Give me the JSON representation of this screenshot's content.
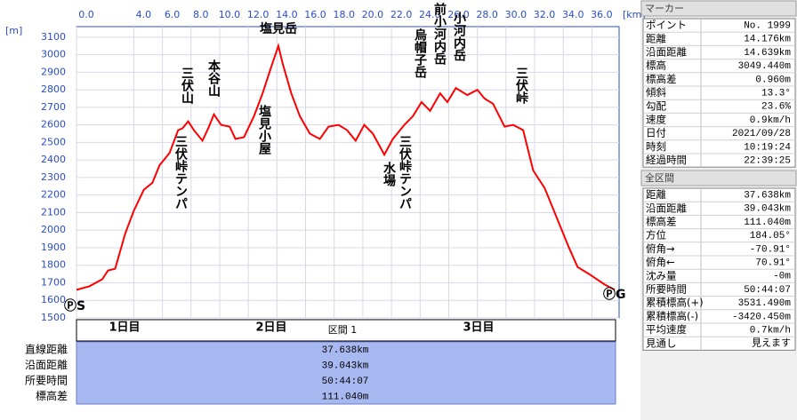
{
  "chart_data": {
    "type": "line",
    "y_axis_label": "[m]",
    "x_axis_label": "[km]",
    "x": [
      0,
      0.9,
      1.8,
      2.2,
      2.7,
      3.4,
      4.0,
      4.7,
      5.3,
      5.8,
      6.5,
      7.1,
      7.4,
      7.8,
      8.2,
      8.8,
      9.2,
      9.6,
      10.1,
      10.7,
      11.1,
      11.7,
      12.4,
      13.0,
      13.6,
      14.1,
      14.4,
      15.0,
      15.6,
      16.3,
      17.0,
      17.6,
      18.3,
      18.9,
      19.5,
      20.1,
      20.7,
      21.5,
      22.1,
      22.9,
      23.5,
      24.1,
      24.7,
      25.4,
      25.9,
      26.5,
      27.3,
      28.0,
      28.5,
      29.1,
      29.9,
      30.5,
      31.2,
      31.9,
      32.7,
      33.5,
      34.4,
      35.0,
      35.8,
      36.9,
      37.6
    ],
    "series": [
      {
        "color": "#ff0000",
        "values": [
          1660,
          1680,
          1720,
          1770,
          1780,
          1980,
          2110,
          2230,
          2270,
          2370,
          2440,
          2570,
          2580,
          2620,
          2570,
          2510,
          2580,
          2660,
          2600,
          2590,
          2520,
          2530,
          2650,
          2780,
          2930,
          3050,
          2950,
          2780,
          2650,
          2550,
          2520,
          2590,
          2600,
          2570,
          2510,
          2600,
          2550,
          2430,
          2520,
          2600,
          2650,
          2730,
          2680,
          2780,
          2730,
          2810,
          2770,
          2800,
          2750,
          2720,
          2590,
          2600,
          2570,
          2340,
          2240,
          2080,
          1900,
          1790,
          1750,
          1690,
          1660
        ]
      }
    ],
    "xlim": [
      0,
      37.9
    ],
    "ylim": [
      1500,
      3160
    ],
    "xticks": [
      {
        "value": 0,
        "label": "0.0"
      },
      {
        "value": 4,
        "label": "4.0"
      },
      {
        "value": 6,
        "label": "6.0"
      },
      {
        "value": 8,
        "label": "8.0"
      },
      {
        "value": 10,
        "label": "10.0"
      },
      {
        "value": 12,
        "label": "12.0"
      },
      {
        "value": 14,
        "label": "14.0"
      },
      {
        "value": 16,
        "label": "16.0"
      },
      {
        "value": 18,
        "label": "18.0"
      },
      {
        "value": 20,
        "label": "20.0"
      },
      {
        "value": 22,
        "label": "22.0"
      },
      {
        "value": 24,
        "label": "24.0"
      },
      {
        "value": 26,
        "label": "26.0"
      },
      {
        "value": 28,
        "label": "28.0"
      },
      {
        "value": 30,
        "label": "30.0"
      },
      {
        "value": 32,
        "label": "32.0"
      },
      {
        "value": 34,
        "label": "34.0"
      },
      {
        "value": 36,
        "label": "36.0"
      }
    ],
    "yticks": [
      1500,
      1600,
      1700,
      1800,
      1900,
      2000,
      2100,
      2200,
      2300,
      2400,
      2500,
      2600,
      2700,
      2800,
      2900,
      3000,
      3100
    ],
    "grid": true,
    "annotations": [
      "三伏山",
      "三伏峠テンパ",
      "本谷山",
      "塩見小屋",
      "塩見岳",
      "水場",
      "三伏峠テンパ",
      "烏帽子岳",
      "前小河内岳",
      "小河内岳",
      "三伏峠"
    ],
    "start_label": "ⓅS",
    "end_label": "ⓅG"
  },
  "day_bar": {
    "days": [
      "1日目",
      "2日目",
      "3日目"
    ],
    "section": "区間 1"
  },
  "summary": {
    "rows": [
      [
        "直線距離",
        "37.638km"
      ],
      [
        "沿面距離",
        "39.043km"
      ],
      [
        "所要時間",
        "50:44:07"
      ],
      [
        "標高差",
        "111.040m"
      ]
    ]
  },
  "marker_panel": {
    "title": "マーカー",
    "rows": [
      [
        "ポイント",
        "No. 1999"
      ],
      [
        "距離",
        "14.176km"
      ],
      [
        "沿面距離",
        "14.639km"
      ],
      [
        "標高",
        "3049.440m"
      ],
      [
        "標高差",
        "0.960m"
      ],
      [
        "傾斜",
        "13.3°"
      ],
      [
        "勾配",
        "23.6%"
      ],
      [
        "速度",
        "0.9km/h"
      ],
      [
        "日付",
        "2021/09/28"
      ],
      [
        "時刻",
        "10:19:24"
      ],
      [
        "経過時間",
        "22:39:25"
      ]
    ]
  },
  "total_panel": {
    "title": "全区間",
    "rows": [
      [
        "距離",
        "37.638km"
      ],
      [
        "沿面距離",
        "39.043km"
      ],
      [
        "標高差",
        "111.040m"
      ],
      [
        "方位",
        "184.05°"
      ],
      [
        "俯角→",
        "-70.91°"
      ],
      [
        "俯角←",
        "70.91°"
      ],
      [
        "沈み量",
        "-0m"
      ],
      [
        "所要時間",
        "50:44:07"
      ],
      [
        "累積標高(+)",
        "3531.490m"
      ],
      [
        "累積標高(-)",
        "-3420.450m"
      ],
      [
        "平均速度",
        "0.7km/h"
      ],
      [
        "見通し",
        "見えます"
      ]
    ]
  }
}
